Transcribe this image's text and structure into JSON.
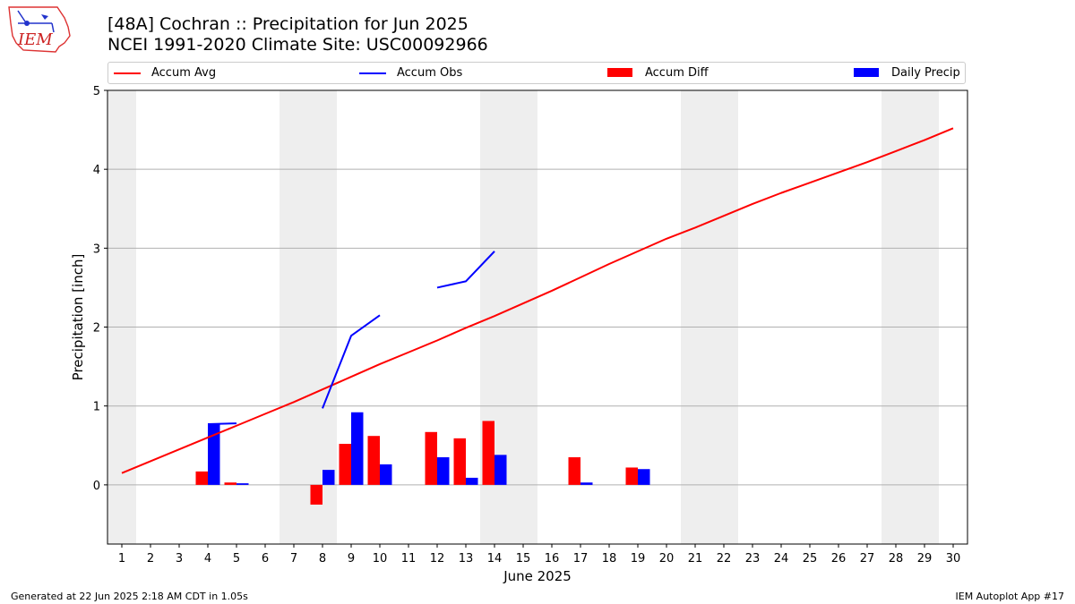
{
  "header": {
    "title_line1": "[48A] Cochran :: Precipitation for Jun 2025",
    "title_line2": "NCEI 1991-2020 Climate Site: USC00092966",
    "logo_text": "IEM"
  },
  "legend": {
    "placement": "top",
    "items": [
      {
        "label": "Accum Avg",
        "kind": "line",
        "color": "#ff0000"
      },
      {
        "label": "Accum Obs",
        "kind": "line",
        "color": "#0000ff"
      },
      {
        "label": "Accum Diff",
        "kind": "bar",
        "color": "#ff0000"
      },
      {
        "label": "Daily Precip",
        "kind": "bar",
        "color": "#0000ff"
      }
    ]
  },
  "footer": {
    "left": "Generated at 22 Jun 2025 2:18 AM CDT in 1.05s",
    "right": "IEM Autoplot App #17"
  },
  "chart_data": {
    "type": "bar",
    "xlabel": "June 2025",
    "ylabel": "Precipitation [inch]",
    "x": [
      1,
      2,
      3,
      4,
      5,
      6,
      7,
      8,
      9,
      10,
      11,
      12,
      13,
      14,
      15,
      16,
      17,
      18,
      19,
      20,
      21,
      22,
      23,
      24,
      25,
      26,
      27,
      28,
      29,
      30
    ],
    "xlim": [
      0.5,
      30.5
    ],
    "ylim": [
      -0.75,
      5.0
    ],
    "yticks": [
      0,
      1,
      2,
      3,
      4,
      5
    ],
    "grid": "horizontal",
    "weekend_shading": [
      [
        0.5,
        1.5
      ],
      [
        6.5,
        8.5
      ],
      [
        13.5,
        15.5
      ],
      [
        20.5,
        22.5
      ],
      [
        27.5,
        29.5
      ]
    ],
    "weekend_color": "#eeeeee",
    "series": [
      {
        "name": "Accum Avg",
        "kind": "line",
        "color": "#ff0000",
        "values": [
          0.15,
          0.3,
          0.45,
          0.6,
          0.75,
          0.9,
          1.05,
          1.21,
          1.37,
          1.53,
          1.68,
          1.83,
          1.99,
          2.14,
          2.3,
          2.46,
          2.63,
          2.8,
          2.96,
          3.12,
          3.26,
          3.41,
          3.56,
          3.7,
          3.83,
          3.96,
          4.09,
          4.23,
          4.37,
          4.52
        ]
      },
      {
        "name": "Accum Obs",
        "kind": "line",
        "color": "#0000ff",
        "values": [
          null,
          null,
          null,
          0.77,
          0.78,
          null,
          null,
          0.97,
          1.89,
          2.15,
          null,
          2.5,
          2.58,
          2.96,
          null,
          null,
          null,
          null,
          null,
          null,
          null,
          null,
          null,
          null,
          null,
          null,
          null,
          null,
          null,
          null
        ]
      },
      {
        "name": "Accum Diff",
        "kind": "bar",
        "color": "#ff0000",
        "values": [
          null,
          null,
          null,
          0.17,
          0.03,
          null,
          null,
          -0.25,
          0.52,
          0.62,
          null,
          0.67,
          0.59,
          0.81,
          null,
          null,
          0.35,
          null,
          0.22,
          null,
          null,
          null,
          null,
          null,
          null,
          null,
          null,
          null,
          null,
          null
        ]
      },
      {
        "name": "Daily Precip",
        "kind": "bar",
        "color": "#0000ff",
        "values": [
          null,
          null,
          null,
          0.77,
          0.02,
          null,
          null,
          0.19,
          0.92,
          0.26,
          null,
          0.35,
          0.09,
          0.38,
          null,
          null,
          0.03,
          null,
          0.2,
          null,
          null,
          null,
          null,
          null,
          null,
          null,
          null,
          null,
          null,
          null
        ]
      }
    ]
  }
}
